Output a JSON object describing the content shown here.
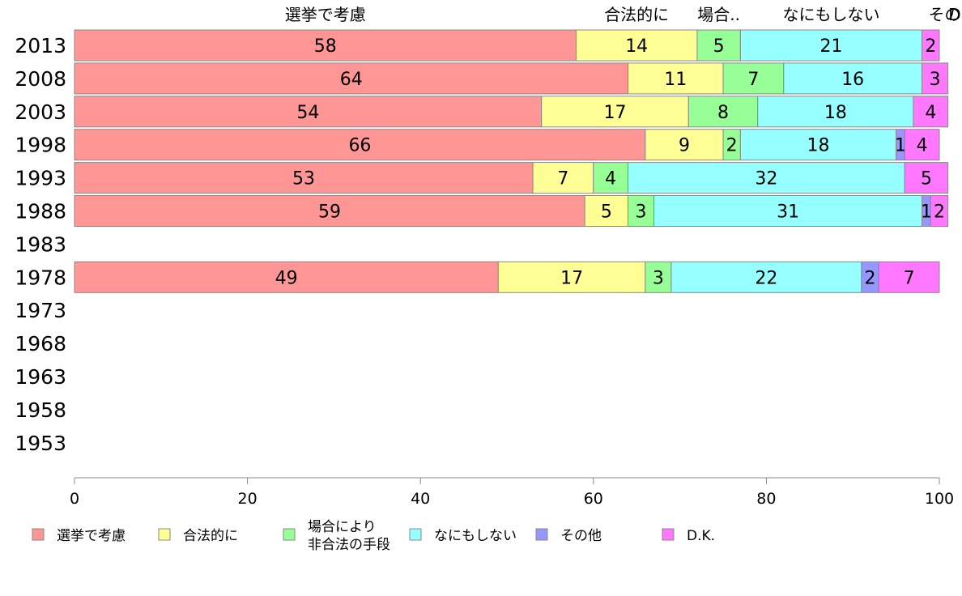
{
  "chart_data": {
    "type": "bar",
    "orientation": "horizontal",
    "stacked": true,
    "xlim": [
      0,
      100
    ],
    "x_ticks": [
      0,
      20,
      40,
      60,
      80,
      100
    ],
    "grid": false,
    "legend_position": "bottom",
    "categories": [
      "2013",
      "2008",
      "2003",
      "1998",
      "1993",
      "1988",
      "1983",
      "1978",
      "1973",
      "1968",
      "1963",
      "1958",
      "1953"
    ],
    "series": [
      {
        "name": "選挙で考慮",
        "top_label": "選挙で考慮",
        "color": "#ff9696",
        "values": [
          58,
          64,
          54,
          66,
          53,
          59,
          null,
          49,
          null,
          null,
          null,
          null,
          null
        ]
      },
      {
        "name": "合法的に",
        "top_label": "合法的に",
        "color": "#ffff96",
        "values": [
          14,
          11,
          17,
          9,
          7,
          5,
          null,
          17,
          null,
          null,
          null,
          null,
          null
        ]
      },
      {
        "name": "場合により非合法の手段",
        "name_lines": [
          "場合により",
          "非合法の手段"
        ],
        "top_label": "場合..",
        "color": "#96ff96",
        "values": [
          5,
          7,
          8,
          2,
          4,
          3,
          null,
          3,
          null,
          null,
          null,
          null,
          null
        ]
      },
      {
        "name": "なにもしない",
        "top_label": "なにもしない",
        "color": "#96ffff",
        "values": [
          21,
          16,
          18,
          18,
          32,
          31,
          null,
          22,
          null,
          null,
          null,
          null,
          null
        ]
      },
      {
        "name": "その他",
        "top_label": "その",
        "color": "#9696ff",
        "values": [
          0,
          0,
          0,
          1,
          0,
          1,
          null,
          2,
          null,
          null,
          null,
          null,
          null
        ]
      },
      {
        "name": "D.K.",
        "top_label": "D...",
        "color": "#ff78ff",
        "values": [
          2,
          3,
          4,
          4,
          5,
          2,
          null,
          7,
          null,
          null,
          null,
          null,
          null
        ]
      }
    ]
  }
}
